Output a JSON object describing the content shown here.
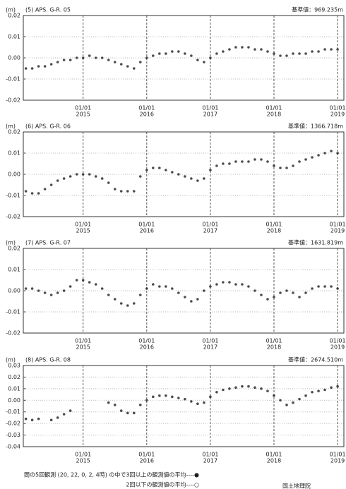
{
  "chart_data": [
    {
      "type": "scatter",
      "title": "(5) APS. G-R. 05",
      "subtitle": "基準値：969.235m",
      "y_label": "(m)",
      "color": "#111111",
      "grid": true,
      "xlim": [
        2014.06,
        2019.11
      ],
      "xtick_day": "01/01",
      "xticks": [
        {
          "value": 2015,
          "label": "2015"
        },
        {
          "value": 2016,
          "label": "2016"
        },
        {
          "value": 2017,
          "label": "2017"
        },
        {
          "value": 2018,
          "label": "2018"
        },
        {
          "value": 2019,
          "label": "2019"
        }
      ],
      "ylim": [
        -0.02,
        0.02
      ],
      "yticks": [
        0.02,
        0.01,
        {
          "value": 0,
          "label": "0.00"
        },
        -0.01,
        -0.02
      ],
      "x": [
        2014.1,
        2014.2,
        2014.3,
        2014.4,
        2014.5,
        2014.6,
        2014.7,
        2014.8,
        2014.9,
        2015.0,
        2015.1,
        2015.2,
        2015.3,
        2015.4,
        2015.5,
        2015.6,
        2015.7,
        2015.8,
        2015.9,
        2016.0,
        2016.1,
        2016.2,
        2016.3,
        2016.4,
        2016.5,
        2016.6,
        2016.7,
        2016.8,
        2016.9,
        2017.0,
        2017.1,
        2017.2,
        2017.3,
        2017.4,
        2017.5,
        2017.6,
        2017.7,
        2017.8,
        2017.9,
        2018.0,
        2018.1,
        2018.2,
        2018.3,
        2018.4,
        2018.5,
        2018.6,
        2018.7,
        2018.8,
        2018.9,
        2019.0
      ],
      "values": [
        -0.005,
        -0.005,
        -0.004,
        -0.004,
        -0.003,
        -0.002,
        -0.001,
        -0.001,
        0.0,
        0.0,
        0.001,
        0.0,
        0.0,
        -0.001,
        -0.002,
        -0.003,
        -0.004,
        -0.005,
        -0.002,
        0.0,
        0.001,
        0.002,
        0.002,
        0.003,
        0.003,
        0.002,
        0.001,
        -0.001,
        -0.002,
        0.0,
        0.002,
        0.003,
        0.004,
        0.005,
        0.005,
        0.005,
        0.004,
        0.004,
        0.003,
        0.002,
        0.001,
        0.001,
        0.002,
        0.002,
        0.002,
        0.003,
        0.003,
        0.004,
        0.004,
        0.004
      ]
    },
    {
      "type": "scatter",
      "title": "(6) APS. G-R. 06",
      "subtitle": "基準値：1366.718m",
      "y_label": "(m)",
      "color": "#111111",
      "grid": true,
      "xlim": [
        2014.06,
        2019.11
      ],
      "xtick_day": "01/01",
      "xticks": [
        {
          "value": 2015,
          "label": "2015"
        },
        {
          "value": 2016,
          "label": "2016"
        },
        {
          "value": 2017,
          "label": "2017"
        },
        {
          "value": 2018,
          "label": "2018"
        },
        {
          "value": 2019,
          "label": "2019"
        }
      ],
      "ylim": [
        -0.02,
        0.02
      ],
      "yticks": [
        0.02,
        0.01,
        {
          "value": 0,
          "label": "0.00"
        },
        -0.01,
        -0.02
      ],
      "x": [
        2014.1,
        2014.2,
        2014.3,
        2014.4,
        2014.5,
        2014.6,
        2014.7,
        2014.8,
        2014.9,
        2015.0,
        2015.1,
        2015.2,
        2015.3,
        2015.4,
        2015.5,
        2015.6,
        2015.7,
        2015.8,
        2015.9,
        2016.0,
        2016.1,
        2016.2,
        2016.3,
        2016.4,
        2016.5,
        2016.6,
        2016.7,
        2016.8,
        2016.9,
        2017.0,
        2017.1,
        2017.2,
        2017.3,
        2017.4,
        2017.5,
        2017.6,
        2017.7,
        2017.8,
        2017.9,
        2018.0,
        2018.1,
        2018.2,
        2018.3,
        2018.4,
        2018.5,
        2018.6,
        2018.7,
        2018.8,
        2018.9,
        2019.0
      ],
      "values": [
        -0.008,
        -0.009,
        -0.009,
        -0.007,
        -0.005,
        -0.003,
        -0.002,
        -0.001,
        0.0,
        0.0,
        0.0,
        -0.001,
        -0.002,
        -0.004,
        -0.007,
        -0.008,
        -0.008,
        -0.008,
        -0.001,
        0.002,
        0.003,
        0.003,
        0.002,
        0.001,
        0.0,
        -0.001,
        -0.002,
        -0.003,
        -0.002,
        0.002,
        0.004,
        0.005,
        0.005,
        0.006,
        0.006,
        0.006,
        0.007,
        0.007,
        0.006,
        0.004,
        0.003,
        0.003,
        0.004,
        0.006,
        0.007,
        0.008,
        0.009,
        0.01,
        0.011,
        0.01
      ]
    },
    {
      "type": "scatter",
      "title": "(7) APS. G-R. 07",
      "subtitle": "基準値：1631.819m",
      "y_label": "(m)",
      "color": "#111111",
      "grid": true,
      "xlim": [
        2014.06,
        2019.11
      ],
      "xtick_day": "01/01",
      "xticks": [
        {
          "value": 2015,
          "label": "2015"
        },
        {
          "value": 2016,
          "label": "2016"
        },
        {
          "value": 2017,
          "label": "2017"
        },
        {
          "value": 2018,
          "label": "2018"
        },
        {
          "value": 2019,
          "label": "2019"
        }
      ],
      "ylim": [
        -0.02,
        0.02
      ],
      "yticks": [
        0.02,
        0.01,
        {
          "value": 0,
          "label": "0.00"
        },
        -0.01,
        -0.02
      ],
      "x": [
        2014.1,
        2014.2,
        2014.3,
        2014.4,
        2014.5,
        2014.6,
        2014.7,
        2014.8,
        2014.9,
        2015.0,
        2015.1,
        2015.2,
        2015.3,
        2015.4,
        2015.5,
        2015.6,
        2015.7,
        2015.8,
        2015.9,
        2016.0,
        2016.1,
        2016.2,
        2016.3,
        2016.4,
        2016.5,
        2016.6,
        2016.7,
        2016.8,
        2016.9,
        2017.0,
        2017.1,
        2017.2,
        2017.3,
        2017.4,
        2017.5,
        2017.6,
        2017.7,
        2017.8,
        2017.9,
        2018.0,
        2018.1,
        2018.2,
        2018.3,
        2018.4,
        2018.5,
        2018.6,
        2018.7,
        2018.8,
        2018.9,
        2019.0
      ],
      "values": [
        0.001,
        0.001,
        0.0,
        -0.001,
        -0.002,
        -0.001,
        0.0,
        0.002,
        0.005,
        0.005,
        0.004,
        0.003,
        0.001,
        -0.002,
        -0.004,
        -0.006,
        -0.007,
        -0.006,
        -0.002,
        0.001,
        0.003,
        0.002,
        0.002,
        0.001,
        -0.001,
        -0.003,
        -0.005,
        -0.004,
        0.0,
        0.002,
        0.003,
        0.004,
        0.004,
        0.003,
        0.003,
        0.002,
        0.0,
        -0.002,
        -0.004,
        -0.003,
        -0.001,
        0.0,
        -0.001,
        -0.003,
        -0.001,
        0.001,
        0.002,
        0.002,
        0.002,
        0.001
      ]
    },
    {
      "type": "scatter",
      "title": "(8) APS. G-R. 08",
      "subtitle": "基準値：2674.510m",
      "y_label": "(m)",
      "color": "#111111",
      "grid": true,
      "xlim": [
        2014.06,
        2019.11
      ],
      "xtick_day": "01/01",
      "xticks": [
        {
          "value": 2015,
          "label": "2015"
        },
        {
          "value": 2016,
          "label": "2016"
        },
        {
          "value": 2017,
          "label": "2017"
        },
        {
          "value": 2018,
          "label": "2018"
        },
        {
          "value": 2019,
          "label": "2019"
        }
      ],
      "ylim": [
        -0.04,
        0.03
      ],
      "yticks": [
        0.03,
        0.02,
        0.01,
        {
          "value": 0,
          "label": "0.00"
        },
        -0.01,
        -0.02,
        -0.03,
        -0.04
      ],
      "x": [
        2014.1,
        2014.2,
        2014.3,
        2014.4,
        2014.5,
        2014.6,
        2014.7,
        2014.8,
        2014.9,
        2015.0,
        2015.1,
        2015.2,
        2015.3,
        2015.4,
        2015.5,
        2015.6,
        2015.7,
        2015.8,
        2015.9,
        2016.0,
        2016.1,
        2016.2,
        2016.3,
        2016.4,
        2016.5,
        2016.6,
        2016.7,
        2016.8,
        2016.9,
        2017.0,
        2017.1,
        2017.2,
        2017.3,
        2017.4,
        2017.5,
        2017.6,
        2017.7,
        2017.8,
        2017.9,
        2018.0,
        2018.1,
        2018.2,
        2018.3,
        2018.4,
        2018.5,
        2018.6,
        2018.7,
        2018.8,
        2018.9,
        2019.0
      ],
      "values": [
        -0.016,
        -0.017,
        -0.016,
        null,
        -0.017,
        -0.015,
        -0.012,
        -0.009,
        null,
        null,
        null,
        null,
        null,
        -0.002,
        -0.004,
        -0.009,
        -0.011,
        -0.011,
        -0.004,
        0.0,
        0.003,
        0.004,
        0.004,
        0.003,
        0.002,
        0.001,
        -0.001,
        -0.003,
        -0.002,
        0.003,
        0.007,
        0.009,
        0.01,
        0.011,
        0.012,
        0.012,
        0.011,
        0.01,
        0.008,
        0.004,
        0.0,
        -0.004,
        -0.002,
        0.001,
        0.004,
        0.007,
        0.008,
        0.009,
        0.011,
        0.012
      ]
    }
  ],
  "footer": {
    "line1": "間の5回観測 (20, 22, 0, 2, 4時) の中で3回以上の観測値の平均----●",
    "line2": "2回以下の観測値の平均----○",
    "credit": "国土地理院"
  }
}
